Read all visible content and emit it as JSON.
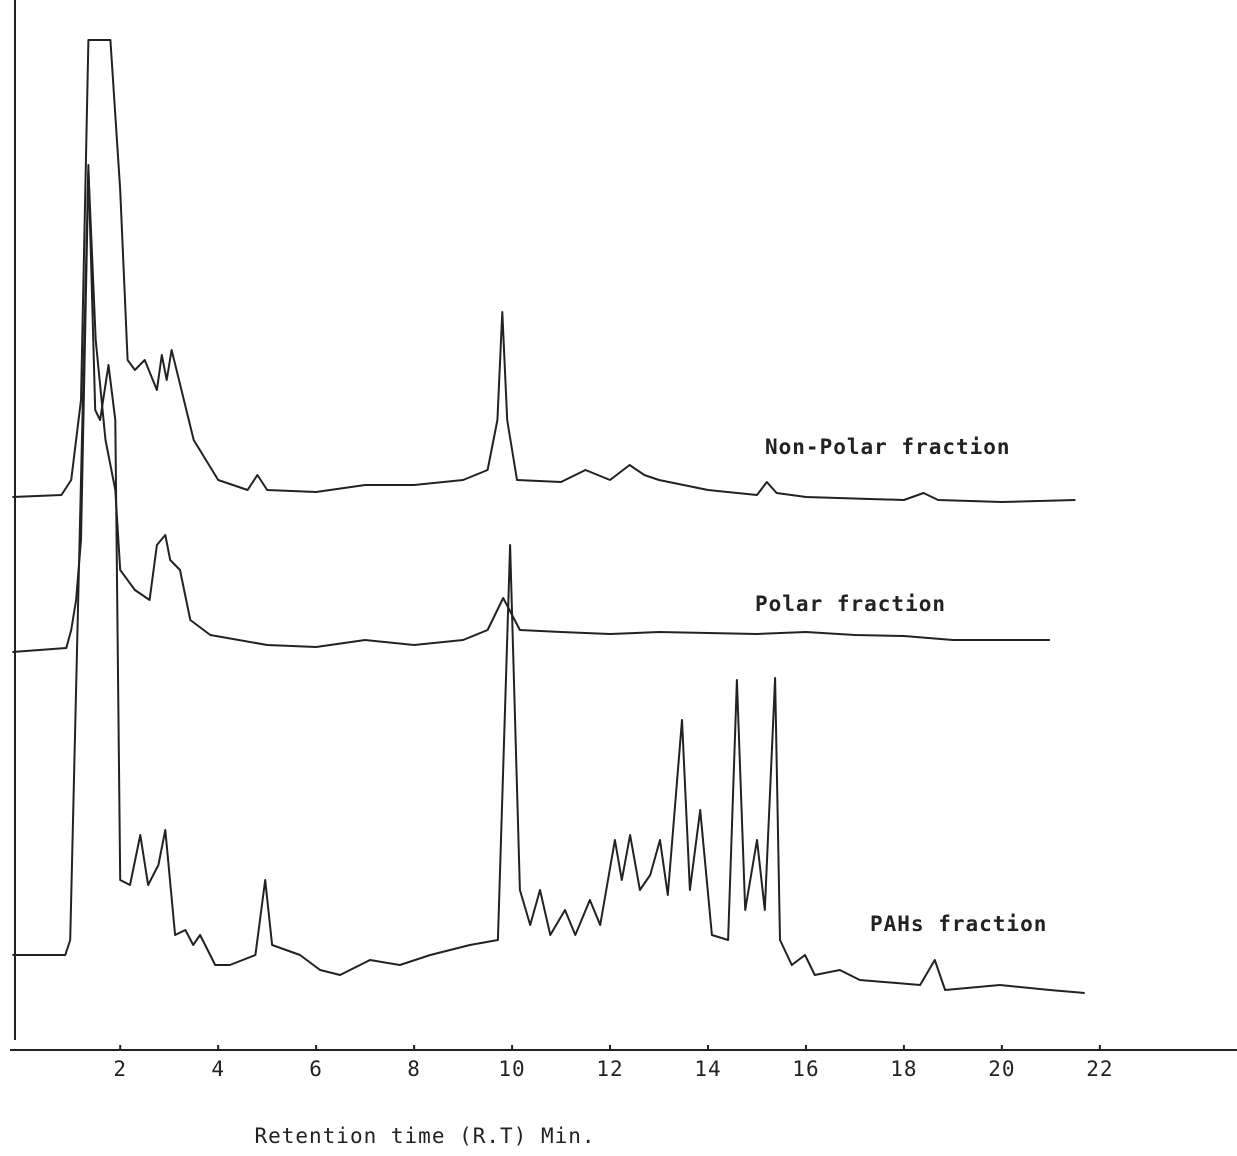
{
  "chart_data": {
    "type": "line",
    "xlabel": "Retention time (R.T) Min.",
    "xlim": [
      -0.25,
      24.8
    ],
    "xticks": [
      2,
      4,
      6,
      8,
      10,
      12,
      14,
      16,
      18,
      20,
      22
    ],
    "ylim": [
      -1,
      104
    ],
    "series": [
      {
        "name": "Non-Polar fraction",
        "color": "#222222",
        "x": [
          -0.2,
          0.8,
          1.0,
          1.2,
          1.35,
          1.8,
          2.0,
          2.15,
          2.3,
          2.5,
          2.75,
          2.85,
          2.95,
          3.05,
          3.2,
          3.5,
          4.0,
          4.6,
          4.8,
          5.0,
          6,
          7,
          8,
          9,
          9.5,
          9.7,
          9.8,
          9.9,
          10.1,
          11,
          11.5,
          12,
          12.4,
          12.7,
          13,
          14,
          15,
          15.2,
          15.4,
          16,
          18,
          18.4,
          18.7,
          20,
          21.5
        ],
        "values": [
          54.3,
          54.5,
          56,
          64,
          100,
          100,
          85,
          68,
          67,
          68,
          65,
          68.5,
          66,
          69,
          66,
          60,
          56,
          55,
          56.5,
          55,
          54.8,
          55.5,
          55.5,
          56,
          57,
          62,
          72.8,
          62,
          56,
          55.8,
          57,
          56,
          57.5,
          56.5,
          56,
          55,
          54.5,
          55.8,
          54.7,
          54.3,
          54,
          54.7,
          54,
          53.8,
          54
        ]
      },
      {
        "name": "Polar fraction",
        "color": "#222222",
        "x": [
          -0.2,
          0.9,
          1.0,
          1.1,
          1.2,
          1.35,
          1.5,
          1.7,
          1.9,
          2.0,
          2.3,
          2.6,
          2.75,
          2.92,
          3.02,
          3.22,
          3.43,
          3.84,
          5,
          6,
          7,
          8,
          9,
          9.5,
          9.82,
          10.16,
          11,
          12,
          13,
          14,
          15,
          16,
          17,
          18,
          19,
          20.98
        ],
        "values": [
          38.8,
          39.2,
          41,
          44,
          50,
          87,
          70,
          60,
          55,
          47,
          45,
          44,
          49.5,
          50.5,
          48,
          47,
          42,
          40.5,
          39.5,
          39.3,
          40,
          39.5,
          40,
          41,
          44.2,
          41,
          40.8,
          40.6,
          40.8,
          40.7,
          40.6,
          40.8,
          40.5,
          40.4,
          40,
          40
        ]
      },
      {
        "name": "PAHs fraction",
        "color": "#222222",
        "x": [
          -0.2,
          0.88,
          0.98,
          1.35,
          1.49,
          1.59,
          1.76,
          1.9,
          2.0,
          2.2,
          2.41,
          2.57,
          2.78,
          2.92,
          3.12,
          3.33,
          3.49,
          3.63,
          3.94,
          4.24,
          4.76,
          4.96,
          5.1,
          5.67,
          6.08,
          6.49,
          7.1,
          7.71,
          8.33,
          9.14,
          9.71,
          9.96,
          10.16,
          10.37,
          10.57,
          10.78,
          11.08,
          11.29,
          11.59,
          11.8,
          12.1,
          12.24,
          12.41,
          12.61,
          12.82,
          13.02,
          13.18,
          13.47,
          13.63,
          13.84,
          14.08,
          14.41,
          14.59,
          14.76,
          15,
          15.16,
          15.37,
          15.47,
          15.71,
          15.98,
          16.18,
          16.69,
          17.1,
          18.33,
          18.63,
          18.84,
          19.96,
          20.98,
          21.69
        ],
        "values": [
          8.5,
          8.5,
          10,
          87.5,
          63,
          62,
          67.5,
          62,
          16,
          15.5,
          20.5,
          15.5,
          17.5,
          21,
          10.5,
          11,
          9.5,
          10.5,
          7.5,
          7.5,
          8.5,
          16,
          9.5,
          8.5,
          7,
          6.5,
          8,
          7.5,
          8.5,
          9.5,
          10,
          49.5,
          15,
          11.5,
          15,
          10.5,
          13,
          10.5,
          14,
          11.5,
          20,
          16,
          20.5,
          15,
          16.5,
          20,
          14.5,
          32,
          15,
          23,
          10.5,
          10,
          36,
          13,
          20,
          13,
          36.2,
          10,
          7.5,
          8.5,
          6.5,
          7,
          6,
          5.5,
          8,
          5,
          5.5,
          5,
          4.7
        ]
      }
    ]
  }
}
